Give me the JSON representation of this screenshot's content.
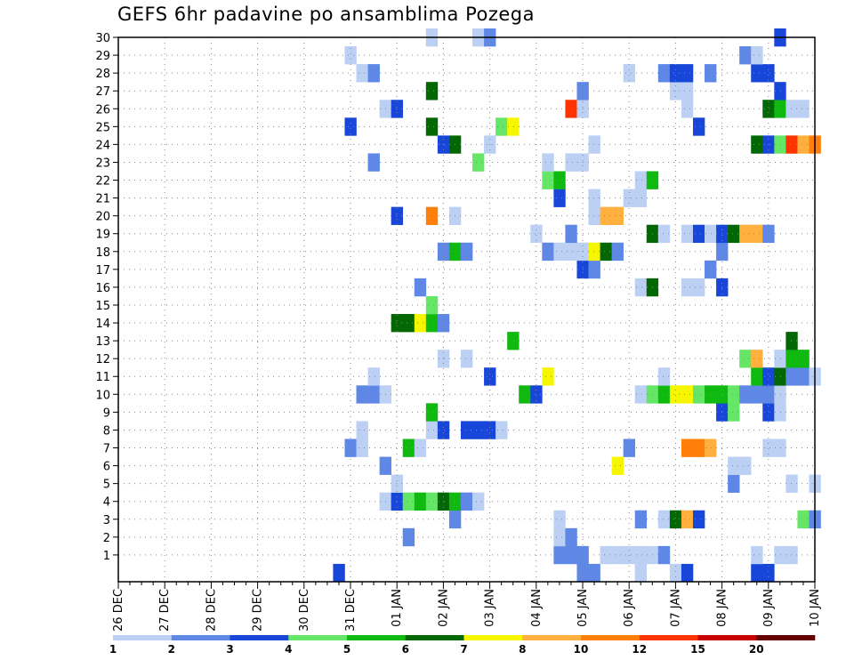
{
  "title": "GEFS 6hr padavine po ansamblima Pozega",
  "colors": {
    "frame": "#000000",
    "grid": "#888888",
    "classes": [
      "#bcd0f4",
      "#5f88e6",
      "#1846d9",
      "#66e666",
      "#0fb90f",
      "#036803",
      "#f6f600",
      "#ffb03f",
      "#ff7f0a",
      "#ff3300",
      "#c80000",
      "#640000"
    ]
  },
  "chart_data": {
    "type": "heatmap",
    "title": "GEFS 6hr padavine po ansamblima Pozega",
    "grid": true,
    "y": {
      "labels": [
        "1",
        "2",
        "3",
        "4",
        "5",
        "6",
        "7",
        "8",
        "9",
        "10",
        "11",
        "12",
        "13",
        "14",
        "15",
        "16",
        "17",
        "18",
        "19",
        "20",
        "21",
        "22",
        "23",
        "24",
        "25",
        "26",
        "27",
        "28",
        "29",
        "30"
      ],
      "range": [
        0,
        30
      ]
    },
    "x": {
      "labels": [
        "26 DEC",
        "27 DEC",
        "28 DEC",
        "29 DEC",
        "30 DEC",
        "31 DEC",
        "01 JAN",
        "02 JAN",
        "03 JAN",
        "04 JAN",
        "05 JAN",
        "06 JAN",
        "07 JAN",
        "08 JAN",
        "09 JAN",
        "10 JAN"
      ],
      "steps_per_day": 4,
      "range": [
        0,
        60
      ]
    },
    "colorbar": {
      "labels": [
        "1",
        "2",
        "3",
        "4",
        "5",
        "6",
        "7",
        "8",
        "10",
        "12",
        "15",
        "20"
      ],
      "boundaries": [
        1,
        2,
        3,
        4,
        5,
        6,
        7,
        8,
        10,
        12,
        15,
        20
      ]
    },
    "cells": [
      [
        19,
        0,
        3
      ],
      [
        40,
        0,
        2
      ],
      [
        41,
        0,
        2
      ],
      [
        45,
        0,
        1
      ],
      [
        48,
        0,
        1
      ],
      [
        49,
        0,
        3
      ],
      [
        55,
        0,
        3
      ],
      [
        56,
        0,
        3
      ],
      [
        55,
        1,
        1
      ],
      [
        57,
        1,
        1
      ],
      [
        58,
        1,
        1
      ],
      [
        38,
        1,
        2
      ],
      [
        39,
        1,
        2
      ],
      [
        40,
        1,
        2
      ],
      [
        42,
        1,
        1
      ],
      [
        43,
        1,
        1
      ],
      [
        44,
        1,
        1
      ],
      [
        45,
        1,
        1
      ],
      [
        46,
        1,
        1
      ],
      [
        47,
        1,
        2
      ],
      [
        25,
        2,
        2
      ],
      [
        38,
        2,
        1
      ],
      [
        39,
        2,
        2
      ],
      [
        38,
        3,
        1
      ],
      [
        29,
        3,
        2
      ],
      [
        45,
        3,
        2
      ],
      [
        47,
        3,
        1
      ],
      [
        48,
        3,
        6
      ],
      [
        49,
        3,
        8
      ],
      [
        50,
        3,
        3
      ],
      [
        59,
        3,
        4
      ],
      [
        60,
        3,
        2
      ],
      [
        23,
        4,
        1
      ],
      [
        24,
        4,
        3
      ],
      [
        25,
        4,
        4
      ],
      [
        26,
        4,
        5
      ],
      [
        27,
        4,
        4
      ],
      [
        28,
        4,
        6
      ],
      [
        29,
        4,
        5
      ],
      [
        30,
        4,
        2
      ],
      [
        31,
        4,
        1
      ],
      [
        24,
        5,
        1
      ],
      [
        53,
        5,
        2
      ],
      [
        58,
        5,
        1
      ],
      [
        60,
        5,
        1
      ],
      [
        23,
        6,
        2
      ],
      [
        43,
        6,
        7
      ],
      [
        53,
        6,
        1
      ],
      [
        54,
        6,
        1
      ],
      [
        20,
        7,
        2
      ],
      [
        21,
        7,
        1
      ],
      [
        25,
        7,
        5
      ],
      [
        26,
        7,
        1
      ],
      [
        44,
        7,
        2
      ],
      [
        49,
        7,
        9
      ],
      [
        50,
        7,
        9
      ],
      [
        51,
        7,
        8
      ],
      [
        56,
        7,
        1
      ],
      [
        57,
        7,
        1
      ],
      [
        21,
        8,
        1
      ],
      [
        27,
        8,
        1
      ],
      [
        28,
        8,
        3
      ],
      [
        30,
        8,
        3
      ],
      [
        31,
        8,
        3
      ],
      [
        32,
        8,
        3
      ],
      [
        33,
        8,
        1
      ],
      [
        27,
        9,
        5
      ],
      [
        52,
        9,
        3
      ],
      [
        53,
        9,
        4
      ],
      [
        56,
        9,
        3
      ],
      [
        57,
        9,
        1
      ],
      [
        21,
        10,
        2
      ],
      [
        22,
        10,
        2
      ],
      [
        23,
        10,
        1
      ],
      [
        35,
        10,
        5
      ],
      [
        36,
        10,
        3
      ],
      [
        45,
        10,
        1
      ],
      [
        46,
        10,
        4
      ],
      [
        47,
        10,
        5
      ],
      [
        48,
        10,
        7
      ],
      [
        49,
        10,
        7
      ],
      [
        50,
        10,
        4
      ],
      [
        51,
        10,
        5
      ],
      [
        52,
        10,
        5
      ],
      [
        53,
        10,
        4
      ],
      [
        54,
        10,
        2
      ],
      [
        55,
        10,
        2
      ],
      [
        56,
        10,
        2
      ],
      [
        57,
        10,
        1
      ],
      [
        22,
        11,
        1
      ],
      [
        32,
        11,
        3
      ],
      [
        37,
        11,
        7
      ],
      [
        47,
        11,
        1
      ],
      [
        55,
        11,
        5
      ],
      [
        56,
        11,
        3
      ],
      [
        57,
        11,
        6
      ],
      [
        58,
        11,
        2
      ],
      [
        59,
        11,
        2
      ],
      [
        60,
        11,
        1
      ],
      [
        28,
        12,
        1
      ],
      [
        30,
        12,
        1
      ],
      [
        54,
        12,
        4
      ],
      [
        55,
        12,
        8
      ],
      [
        57,
        12,
        1
      ],
      [
        58,
        12,
        5
      ],
      [
        59,
        12,
        5
      ],
      [
        34,
        13,
        5
      ],
      [
        58,
        13,
        6
      ],
      [
        24,
        14,
        6
      ],
      [
        25,
        14,
        6
      ],
      [
        26,
        14,
        7
      ],
      [
        27,
        14,
        5
      ],
      [
        28,
        14,
        2
      ],
      [
        27,
        15,
        4
      ],
      [
        26,
        16,
        2
      ],
      [
        45,
        16,
        1
      ],
      [
        46,
        16,
        6
      ],
      [
        49,
        16,
        1
      ],
      [
        50,
        16,
        1
      ],
      [
        52,
        16,
        3
      ],
      [
        40,
        17,
        3
      ],
      [
        41,
        17,
        2
      ],
      [
        51,
        17,
        2
      ],
      [
        28,
        18,
        2
      ],
      [
        29,
        18,
        5
      ],
      [
        30,
        18,
        2
      ],
      [
        37,
        18,
        2
      ],
      [
        38,
        18,
        1
      ],
      [
        39,
        18,
        1
      ],
      [
        40,
        18,
        1
      ],
      [
        41,
        18,
        7
      ],
      [
        42,
        18,
        6
      ],
      [
        43,
        18,
        2
      ],
      [
        52,
        18,
        2
      ],
      [
        36,
        19,
        1
      ],
      [
        39,
        19,
        2
      ],
      [
        46,
        19,
        6
      ],
      [
        47,
        19,
        1
      ],
      [
        49,
        19,
        1
      ],
      [
        50,
        19,
        3
      ],
      [
        51,
        19,
        1
      ],
      [
        52,
        19,
        3
      ],
      [
        53,
        19,
        6
      ],
      [
        54,
        19,
        8
      ],
      [
        55,
        19,
        8
      ],
      [
        56,
        19,
        2
      ],
      [
        24,
        20,
        3
      ],
      [
        27,
        20,
        9
      ],
      [
        29,
        20,
        1
      ],
      [
        41,
        20,
        1
      ],
      [
        42,
        20,
        8
      ],
      [
        43,
        20,
        8
      ],
      [
        38,
        21,
        3
      ],
      [
        41,
        21,
        1
      ],
      [
        44,
        21,
        1
      ],
      [
        45,
        21,
        1
      ],
      [
        37,
        22,
        4
      ],
      [
        38,
        22,
        5
      ],
      [
        45,
        22,
        1
      ],
      [
        46,
        22,
        5
      ],
      [
        22,
        23,
        2
      ],
      [
        31,
        23,
        4
      ],
      [
        37,
        23,
        1
      ],
      [
        39,
        23,
        1
      ],
      [
        40,
        23,
        1
      ],
      [
        28,
        24,
        3
      ],
      [
        29,
        24,
        6
      ],
      [
        32,
        24,
        1
      ],
      [
        41,
        24,
        1
      ],
      [
        55,
        24,
        6
      ],
      [
        56,
        24,
        3
      ],
      [
        57,
        24,
        4
      ],
      [
        58,
        24,
        10
      ],
      [
        59,
        24,
        8
      ],
      [
        60,
        24,
        9
      ],
      [
        20,
        25,
        3
      ],
      [
        27,
        25,
        6
      ],
      [
        33,
        25,
        4
      ],
      [
        34,
        25,
        7
      ],
      [
        50,
        25,
        3
      ],
      [
        23,
        26,
        1
      ],
      [
        24,
        26,
        3
      ],
      [
        39,
        26,
        10
      ],
      [
        40,
        26,
        1
      ],
      [
        49,
        26,
        1
      ],
      [
        56,
        26,
        6
      ],
      [
        57,
        26,
        5
      ],
      [
        58,
        26,
        1
      ],
      [
        59,
        26,
        1
      ],
      [
        27,
        27,
        6
      ],
      [
        40,
        27,
        2
      ],
      [
        48,
        27,
        1
      ],
      [
        49,
        27,
        1
      ],
      [
        57,
        27,
        3
      ],
      [
        21,
        28,
        1
      ],
      [
        22,
        28,
        2
      ],
      [
        44,
        28,
        1
      ],
      [
        47,
        28,
        2
      ],
      [
        48,
        28,
        3
      ],
      [
        49,
        28,
        3
      ],
      [
        51,
        28,
        2
      ],
      [
        55,
        28,
        3
      ],
      [
        56,
        28,
        3
      ],
      [
        20,
        29,
        1
      ],
      [
        54,
        29,
        2
      ],
      [
        55,
        29,
        1
      ],
      [
        27,
        30,
        1
      ],
      [
        31,
        30,
        1
      ],
      [
        32,
        30,
        2
      ],
      [
        57,
        30,
        3
      ]
    ]
  }
}
